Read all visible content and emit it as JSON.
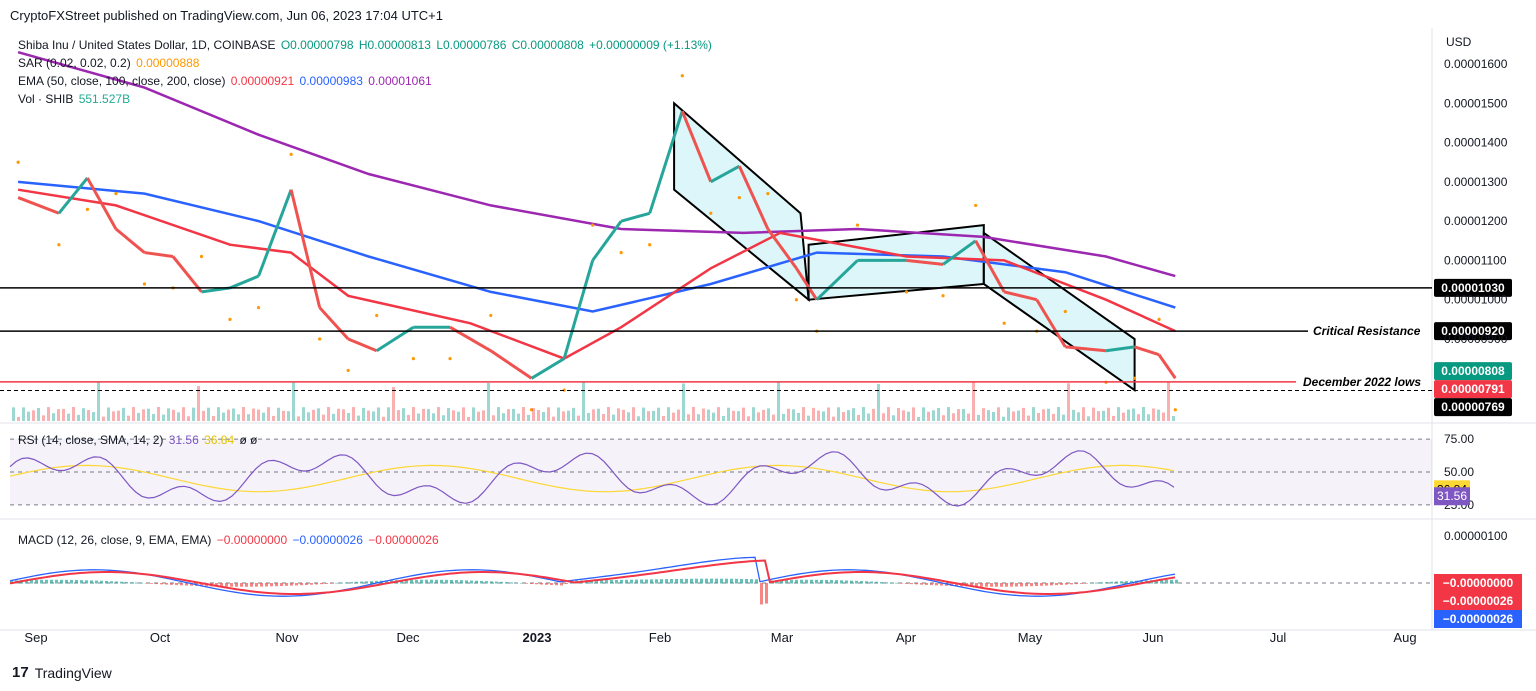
{
  "header": {
    "published": "CryptoFXStreet published on TradingView.com, Jun 06, 2023 17:04 UTC+1"
  },
  "footer": {
    "logo_text": "TradingView",
    "logo_mark": "17"
  },
  "legend": {
    "symbol": "Shiba Inu / United States Dollar, 1D, COINBASE",
    "ohlc": {
      "o": "O0.00000798",
      "h": "H0.00000813",
      "l": "L0.00000786",
      "c": "C0.00000808",
      "chg": "+0.00000009 (+1.13%)"
    },
    "sar": {
      "label": "SAR (0.02, 0.02, 0.2)",
      "value": "0.00000888"
    },
    "ema": {
      "label": "EMA (50, close, 100, close, 200, close)",
      "v50": "0.00000921",
      "v100": "0.00000983",
      "v200": "0.00001061"
    },
    "vol": {
      "label": "Vol · SHIB",
      "value": "551.527B"
    },
    "rsi": {
      "label": "RSI (14, close, SMA, 14, 2)",
      "v": "31.56",
      "sma": "36.84",
      "extra": "ø ø"
    },
    "macd": {
      "label": "MACD (12, 26, close, 9, EMA, EMA)",
      "hist": "−0.00000000",
      "macd": "−0.00000026",
      "signal": "−0.00000026"
    }
  },
  "colors": {
    "up": "#26a69a",
    "down": "#ef5350",
    "ema50": "#f23645",
    "ema100": "#2962ff",
    "ema200": "#9c27b0",
    "sar": "#ff9800",
    "rsi": "#7e57c2",
    "rsi_sma": "#fdd835",
    "macd": "#2962ff",
    "signal": "#f23645",
    "channel_fill": "#b2ebf2",
    "level_line": "#000000",
    "dec_line": "#f23645"
  },
  "price_axis": {
    "unit": "USD",
    "ticks": [
      "0.00001600",
      "0.00001500",
      "0.00001400",
      "0.00001300",
      "0.00001200",
      "0.00001100",
      "0.00001000",
      "0.00000900"
    ],
    "badges": {
      "level_upper": "0.00001030",
      "critical": "0.00000920",
      "last": "0.00000808",
      "dec_lows": "0.00000791",
      "lower": "0.00000769"
    }
  },
  "annotations": {
    "critical_resistance": "Critical Resistance",
    "december_lows": "December 2022 lows"
  },
  "rsi_axis": {
    "ticks": [
      "75.00",
      "50.00",
      "25.00"
    ],
    "sma_badge": "36.84",
    "rsi_badge": "31.56"
  },
  "macd_axis": {
    "top_tick": "0.00000100",
    "hist_badge": "−0.00000000",
    "macd_badge": "−0.00000026",
    "signal_badge": "−0.00000026"
  },
  "time_axis": {
    "labels": [
      "Sep",
      "Oct",
      "Nov",
      "Dec",
      "2023",
      "Feb",
      "Mar",
      "Apr",
      "May",
      "Jun",
      "Jul",
      "Aug"
    ]
  },
  "chart_data": {
    "type": "candlestick",
    "symbol": "SHIB/USD",
    "interval": "1D",
    "y_range": [
      7.7e-06,
      1.63e-05
    ],
    "levels": {
      "upper_support": 1.03e-05,
      "critical_resistance": 9.2e-06,
      "december_2022_lows": 7.91e-06,
      "lower": 7.69e-06
    },
    "series_path": [
      [
        "2022-08-26",
        1.26e-05
      ],
      [
        "2022-09-05",
        1.22e-05
      ],
      [
        "2022-09-12",
        1.31e-05
      ],
      [
        "2022-09-19",
        1.18e-05
      ],
      [
        "2022-09-26",
        1.12e-05
      ],
      [
        "2022-10-03",
        1.11e-05
      ],
      [
        "2022-10-10",
        1.02e-05
      ],
      [
        "2022-10-17",
        1.03e-05
      ],
      [
        "2022-10-24",
        1.06e-05
      ],
      [
        "2022-11-01",
        1.28e-05
      ],
      [
        "2022-11-08",
        9.8e-06
      ],
      [
        "2022-11-15",
        9e-06
      ],
      [
        "2022-11-22",
        8.7e-06
      ],
      [
        "2022-12-01",
        9.3e-06
      ],
      [
        "2022-12-10",
        9.3e-06
      ],
      [
        "2022-12-20",
        8.7e-06
      ],
      [
        "2022-12-30",
        8e-06
      ],
      [
        "2023-01-07",
        8.5e-06
      ],
      [
        "2023-01-14",
        1.1e-05
      ],
      [
        "2023-01-21",
        1.2e-05
      ],
      [
        "2023-01-28",
        1.22e-05
      ],
      [
        "2023-02-05",
        1.48e-05
      ],
      [
        "2023-02-12",
        1.3e-05
      ],
      [
        "2023-02-19",
        1.34e-05
      ],
      [
        "2023-02-26",
        1.18e-05
      ],
      [
        "2023-03-05",
        1.08e-05
      ],
      [
        "2023-03-10",
        1e-05
      ],
      [
        "2023-03-20",
        1.1e-05
      ],
      [
        "2023-04-01",
        1.1e-05
      ],
      [
        "2023-04-10",
        1.09e-05
      ],
      [
        "2023-04-18",
        1.15e-05
      ],
      [
        "2023-04-25",
        1.02e-05
      ],
      [
        "2023-05-03",
        1e-05
      ],
      [
        "2023-05-10",
        8.8e-06
      ],
      [
        "2023-05-20",
        8.7e-06
      ],
      [
        "2023-05-27",
        8.8e-06
      ],
      [
        "2023-06-02",
        8.6e-06
      ],
      [
        "2023-06-06",
        8e-06
      ]
    ],
    "ema50_path": [
      [
        "2022-08-26",
        1.28e-05
      ],
      [
        "2022-09-19",
        1.24e-05
      ],
      [
        "2022-10-17",
        1.14e-05
      ],
      [
        "2022-11-01",
        1.12e-05
      ],
      [
        "2022-11-15",
        1.01e-05
      ],
      [
        "2022-12-15",
        9.4e-06
      ],
      [
        "2023-01-07",
        8.5e-06
      ],
      [
        "2023-01-21",
        9.3e-06
      ],
      [
        "2023-02-12",
        1.08e-05
      ],
      [
        "2023-03-01",
        1.17e-05
      ],
      [
        "2023-04-01",
        1.11e-05
      ],
      [
        "2023-04-25",
        1.1e-05
      ],
      [
        "2023-05-20",
        1e-05
      ],
      [
        "2023-06-06",
        9.2e-06
      ]
    ],
    "ema100_path": [
      [
        "2022-08-26",
        1.3e-05
      ],
      [
        "2022-09-26",
        1.27e-05
      ],
      [
        "2022-10-24",
        1.2e-05
      ],
      [
        "2022-11-20",
        1.11e-05
      ],
      [
        "2022-12-20",
        1.02e-05
      ],
      [
        "2023-01-14",
        9.7e-06
      ],
      [
        "2023-02-12",
        1.04e-05
      ],
      [
        "2023-03-10",
        1.12e-05
      ],
      [
        "2023-04-10",
        1.11e-05
      ],
      [
        "2023-05-10",
        1.07e-05
      ],
      [
        "2023-06-06",
        9.8e-06
      ]
    ],
    "ema200_path": [
      [
        "2022-08-26",
        1.63e-05
      ],
      [
        "2022-09-26",
        1.54e-05
      ],
      [
        "2022-10-24",
        1.42e-05
      ],
      [
        "2022-11-20",
        1.32e-05
      ],
      [
        "2022-12-20",
        1.24e-05
      ],
      [
        "2023-01-21",
        1.18e-05
      ],
      [
        "2023-02-20",
        1.17e-05
      ],
      [
        "2023-03-20",
        1.18e-05
      ],
      [
        "2023-04-20",
        1.16e-05
      ],
      [
        "2023-05-20",
        1.11e-05
      ],
      [
        "2023-06-06",
        1.06e-05
      ]
    ],
    "rsi": {
      "last": 31.56,
      "sma": 36.84,
      "bands": [
        75,
        50,
        25
      ]
    },
    "macd": {
      "macd": -2.6e-07,
      "signal": -2.6e-07,
      "histogram": -0.0
    }
  }
}
